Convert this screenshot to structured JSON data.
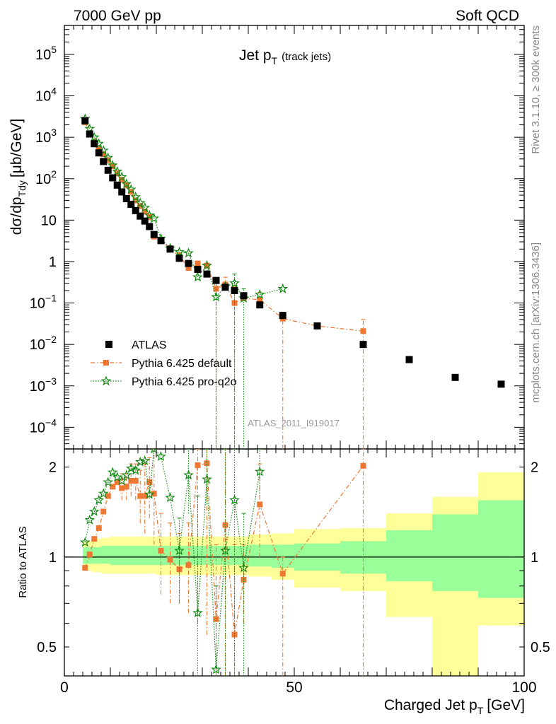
{
  "header": {
    "left": "7000 GeV pp",
    "right": "Soft QCD"
  },
  "side_labels": {
    "rivet": "Rivet 3.1.10, ≥ 300k events",
    "mcplots": "mcplots.cern.ch [arXiv:1306.3436]"
  },
  "analysis_id": "ATLAS_2011_I919017",
  "chart_data": [
    {
      "type": "scatter",
      "panel": "main",
      "title": "Jet p",
      "title_sub": "T",
      "title_note": "(track jets)",
      "ylabel": "dσ/dp",
      "ylabel_sub": "Tdy",
      "ylabel_unit": "[μb/GeV]",
      "yscale": "log",
      "ylim": [
        3e-05,
        500000
      ],
      "xlim": [
        0,
        100
      ],
      "y_ticks": [
        {
          "v": 100000,
          "m": "10",
          "e": "5"
        },
        {
          "v": 10000,
          "m": "10",
          "e": "4"
        },
        {
          "v": 1000,
          "m": "10",
          "e": "3"
        },
        {
          "v": 100,
          "m": "10",
          "e": "2"
        },
        {
          "v": 10,
          "m": "10",
          "e": ""
        },
        {
          "v": 1,
          "m": "1",
          "e": ""
        },
        {
          "v": 0.1,
          "m": "10",
          "e": "−1"
        },
        {
          "v": 0.01,
          "m": "10",
          "e": "−2"
        },
        {
          "v": 0.001,
          "m": "10",
          "e": "−3"
        },
        {
          "v": 0.0001,
          "m": "10",
          "e": "−4"
        }
      ],
      "legend": [
        {
          "label": "ATLAS",
          "series": "atlas"
        },
        {
          "label": "Pythia 6.425 default",
          "series": "default"
        },
        {
          "label": "Pythia 6.425 pro-q2o",
          "series": "proq2o"
        }
      ],
      "series": [
        {
          "name": "ATLAS",
          "key": "atlas",
          "color": "#000000",
          "marker": "square",
          "x": [
            4.5,
            5.5,
            6.5,
            7.5,
            8.5,
            9.5,
            10.5,
            11.5,
            12.5,
            13.5,
            14.5,
            15.5,
            16.5,
            17.5,
            18.5,
            19.5,
            21,
            23,
            25,
            27,
            29,
            31,
            33,
            35,
            37,
            39,
            42.5,
            47.5,
            55,
            65,
            75,
            85,
            95
          ],
          "y": [
            2500,
            1200,
            700,
            420,
            260,
            160,
            105,
            70,
            48,
            33,
            24,
            17,
            12.5,
            9.5,
            7,
            4.5,
            3.2,
            2.0,
            1.2,
            0.9,
            0.65,
            0.5,
            0.35,
            0.24,
            0.2,
            0.15,
            0.09,
            0.05,
            0.028,
            0.01,
            0.0043,
            0.0016,
            0.0011
          ]
        },
        {
          "name": "Pythia 6.425 default",
          "key": "default",
          "color": "#ee7733",
          "marker": "square-small",
          "x": [
            4.5,
            5.5,
            6.5,
            7.5,
            8.5,
            9.5,
            10.5,
            11.5,
            12.5,
            13.5,
            14.5,
            15.5,
            16.5,
            17.5,
            18.5,
            19.5,
            21,
            23,
            25,
            27,
            29,
            31,
            33,
            35,
            37,
            39,
            42.5,
            47.5,
            55,
            65
          ],
          "y": [
            2300,
            1230,
            800,
            520,
            390,
            280,
            200,
            135,
            95,
            70,
            48,
            30,
            22,
            16,
            12,
            4.0,
            3.3,
            2.0,
            1.4,
            0.7,
            0.9,
            0.8,
            0.22,
            0.28,
            0.1,
            0.13,
            0.12,
            0.042,
            0.028,
            0.021
          ],
          "err_lo": [
            null,
            null,
            null,
            null,
            null,
            null,
            null,
            null,
            null,
            null,
            null,
            null,
            null,
            null,
            null,
            null,
            null,
            null,
            null,
            null,
            null,
            null,
            1e-05,
            null,
            1e-05,
            null,
            null,
            1e-05,
            null,
            1e-05
          ],
          "err_hi": [
            null,
            null,
            null,
            null,
            null,
            null,
            null,
            null,
            null,
            null,
            null,
            null,
            null,
            null,
            null,
            null,
            null,
            null,
            null,
            null,
            null,
            null,
            0.35,
            0.42,
            0.25,
            null,
            0.18,
            0.06,
            null,
            0.04
          ]
        },
        {
          "name": "Pythia 6.425 pro-q2o",
          "key": "proq2o",
          "color": "#118811",
          "marker": "star",
          "x": [
            4.5,
            5.5,
            6.5,
            7.5,
            8.5,
            9.5,
            10.5,
            11.5,
            12.5,
            13.5,
            14.5,
            15.5,
            16.5,
            17.5,
            18.5,
            19.5,
            21,
            23,
            25,
            27,
            29,
            31,
            33,
            35,
            37,
            39,
            42.5,
            47.5
          ],
          "y": [
            2800,
            1600,
            1000,
            700,
            480,
            320,
            210,
            150,
            110,
            75,
            55,
            36,
            26,
            20,
            13,
            11,
            3.6,
            2.1,
            1.7,
            1.6,
            0.42,
            0.8,
            0.14,
            0.25,
            0.3,
            0.13,
            0.16,
            0.22
          ],
          "err_lo": [
            null,
            null,
            null,
            null,
            null,
            null,
            null,
            null,
            null,
            null,
            null,
            null,
            null,
            null,
            null,
            null,
            null,
            null,
            null,
            null,
            null,
            null,
            1e-05,
            null,
            1e-05,
            1e-05,
            null,
            null
          ],
          "err_hi": [
            null,
            null,
            null,
            null,
            null,
            null,
            null,
            null,
            null,
            null,
            null,
            null,
            null,
            null,
            null,
            null,
            null,
            null,
            null,
            null,
            null,
            null,
            0.3,
            null,
            0.5,
            0.22,
            null,
            null
          ]
        }
      ]
    },
    {
      "type": "scatter",
      "panel": "ratio",
      "ylabel": "Ratio to ATLAS",
      "xlabel": "Charged Jet p",
      "xlabel_sub": "T",
      "xlabel_unit": "[GeV]",
      "yscale": "log",
      "ylim": [
        0.4,
        2.3
      ],
      "xlim": [
        0,
        100
      ],
      "x_ticks": [
        0,
        50,
        100
      ],
      "y_ticks": [
        {
          "v": 0.5,
          "label": "0.5"
        },
        {
          "v": 1,
          "label": "1"
        },
        {
          "v": 2,
          "label": "2"
        }
      ],
      "bands": [
        {
          "x0": 4,
          "x1": 6,
          "g_lo": 0.95,
          "g_hi": 1.08,
          "y_lo": 0.9,
          "y_hi": 1.13
        },
        {
          "x0": 6,
          "x1": 8,
          "g_lo": 0.95,
          "g_hi": 1.08,
          "y_lo": 0.89,
          "y_hi": 1.15
        },
        {
          "x0": 8,
          "x1": 10,
          "g_lo": 0.95,
          "g_hi": 1.09,
          "y_lo": 0.88,
          "y_hi": 1.16
        },
        {
          "x0": 10,
          "x1": 20,
          "g_lo": 0.94,
          "g_hi": 1.09,
          "y_lo": 0.88,
          "y_hi": 1.17
        },
        {
          "x0": 20,
          "x1": 40,
          "g_lo": 0.94,
          "g_hi": 1.09,
          "y_lo": 0.87,
          "y_hi": 1.17
        },
        {
          "x0": 40,
          "x1": 45,
          "g_lo": 0.93,
          "g_hi": 1.1,
          "y_lo": 0.86,
          "y_hi": 1.19
        },
        {
          "x0": 45,
          "x1": 50,
          "g_lo": 0.92,
          "g_hi": 1.1,
          "y_lo": 0.84,
          "y_hi": 1.2
        },
        {
          "x0": 50,
          "x1": 60,
          "g_lo": 0.9,
          "g_hi": 1.11,
          "y_lo": 0.79,
          "y_hi": 1.24
        },
        {
          "x0": 60,
          "x1": 70,
          "g_lo": 0.88,
          "g_hi": 1.13,
          "y_lo": 0.77,
          "y_hi": 1.25
        },
        {
          "x0": 70,
          "x1": 80,
          "g_lo": 0.83,
          "g_hi": 1.23,
          "y_lo": 0.63,
          "y_hi": 1.4
        },
        {
          "x0": 80,
          "x1": 90,
          "g_lo": 0.77,
          "g_hi": 1.39,
          "y_lo": 0.3,
          "y_hi": 1.59
        },
        {
          "x0": 90,
          "x1": 100,
          "g_lo": 0.73,
          "g_hi": 1.55,
          "y_lo": 0.59,
          "y_hi": 1.92
        }
      ],
      "series": [
        {
          "name": "Pythia 6.425 default",
          "key": "default",
          "color": "#ee7733",
          "marker": "square-small",
          "x": [
            4.5,
            5.5,
            6.5,
            7.5,
            8.5,
            9.5,
            10.5,
            11.5,
            12.5,
            13.5,
            14.5,
            15.5,
            16.5,
            17.5,
            18.5,
            19.5,
            21,
            23,
            25,
            27,
            29,
            31,
            33,
            35,
            37,
            39,
            42.5,
            47.5,
            65
          ],
          "y": [
            0.92,
            1.02,
            1.15,
            1.25,
            1.42,
            1.6,
            1.72,
            1.78,
            1.7,
            1.72,
            1.8,
            1.8,
            1.6,
            1.6,
            1.78,
            1.63,
            1.05,
            0.98,
            0.91,
            0.94,
            2.03,
            2.06,
            0.62,
            1.28,
            0.55,
            0.84,
            1.5,
            0.88,
            2.02
          ],
          "err_lo": [
            null,
            null,
            null,
            null,
            null,
            null,
            null,
            null,
            1.55,
            1.55,
            1.6,
            1.55,
            1.3,
            1.2,
            1.35,
            1.1,
            0.75,
            0.7,
            0.7,
            0.65,
            0.6,
            0.55,
            0.3,
            0.3,
            0.3,
            0.6,
            1.0,
            0.3,
            0.3
          ],
          "err_hi": [
            null,
            null,
            null,
            null,
            null,
            null,
            null,
            null,
            1.9,
            1.9,
            2.05,
            2.05,
            1.95,
            2.05,
            2.15,
            2.3,
            1.4,
            1.3,
            1.2,
            1.3,
            2.3,
            2.3,
            1.1,
            2.3,
            1.1,
            1.1,
            2.05,
            1.0,
            2.3
          ]
        },
        {
          "name": "Pythia 6.425 pro-q2o",
          "key": "proq2o",
          "color": "#118811",
          "marker": "star",
          "x": [
            4.5,
            5.5,
            6.5,
            7.5,
            8.5,
            9.5,
            10.5,
            11.5,
            12.5,
            13.5,
            14.5,
            15.5,
            16.5,
            17.5,
            18.5,
            19.5,
            21,
            23,
            25,
            27,
            29,
            31,
            33,
            35,
            37,
            39,
            42.5
          ],
          "y": [
            1.12,
            1.33,
            1.42,
            1.55,
            1.63,
            1.78,
            1.92,
            1.85,
            1.8,
            1.88,
            1.98,
            1.95,
            2.08,
            2.1,
            1.62,
            2.45,
            2.17,
            1.58,
            1.05,
            1.88,
            0.65,
            1.82,
            0.42,
            1.05,
            1.55,
            0.92,
            1.93
          ],
          "err_lo": [
            null,
            null,
            null,
            null,
            null,
            null,
            null,
            null,
            null,
            null,
            null,
            null,
            null,
            null,
            null,
            null,
            null,
            null,
            0.7,
            1.4,
            0.3,
            1.5,
            0.3,
            0.3,
            0.3,
            0.3,
            1.6
          ],
          "err_hi": [
            null,
            null,
            null,
            null,
            null,
            null,
            null,
            null,
            null,
            null,
            null,
            null,
            null,
            null,
            null,
            null,
            null,
            null,
            1.35,
            2.3,
            1.6,
            2.3,
            0.8,
            2.3,
            2.3,
            1.4,
            2.3
          ]
        }
      ]
    }
  ]
}
